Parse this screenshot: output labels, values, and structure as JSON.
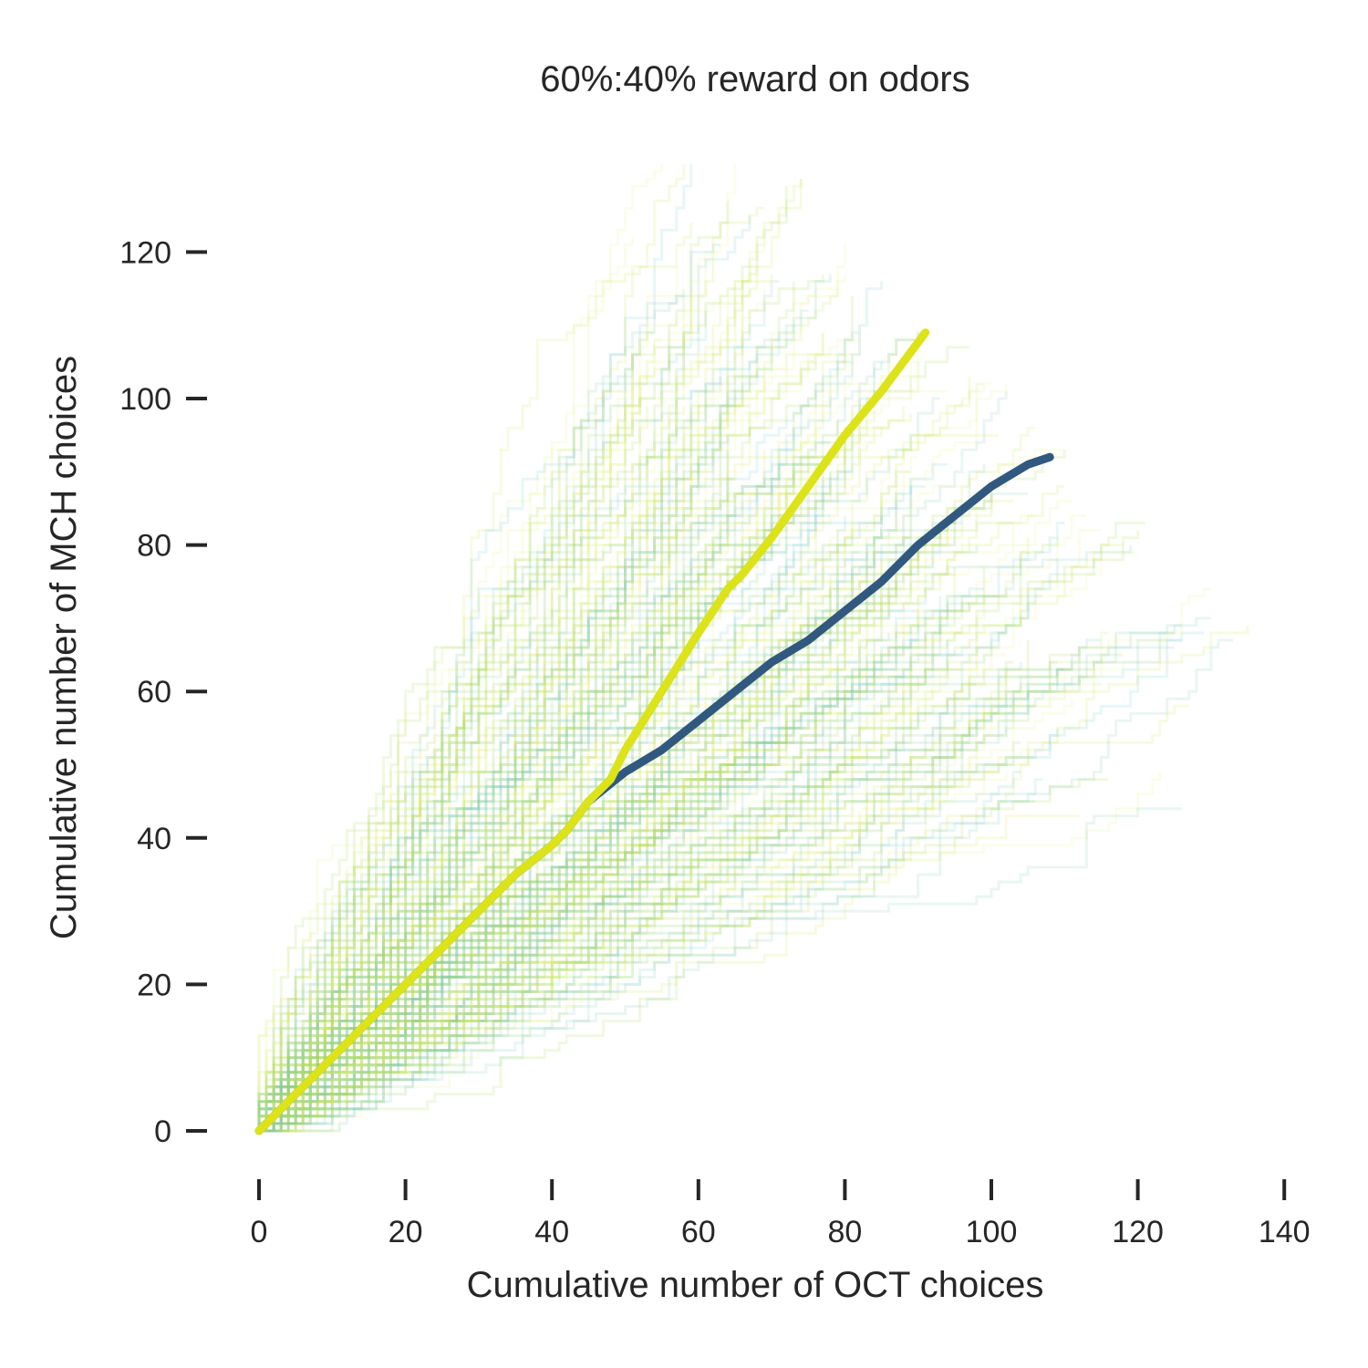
{
  "chart_data": {
    "type": "line",
    "title": "60%:40% reward on odors",
    "xlabel": "Cumulative number of OCT choices",
    "ylabel": "Cumulative number of MCH choices",
    "xlim": [
      -3,
      141
    ],
    "ylim": [
      -5,
      132
    ],
    "xticks": [
      0,
      20,
      40,
      60,
      80,
      100,
      120,
      140
    ],
    "yticks": [
      0,
      20,
      40,
      60,
      80,
      100,
      120
    ],
    "grid": false,
    "legend": "none",
    "background_traces": {
      "description_count": 220,
      "colors": [
        "#78c6c9",
        "#7cc5a8",
        "#a0d44a",
        "#c7e64d",
        "#e4f08a"
      ],
      "envelope_upper": [
        [
          0,
          3
        ],
        [
          20,
          30
        ],
        [
          40,
          55
        ],
        [
          60,
          116
        ],
        [
          68,
          132
        ],
        [
          76,
          124
        ],
        [
          92,
          110
        ],
        [
          110,
          95
        ],
        [
          126,
          75
        ]
      ],
      "envelope_lower": [
        [
          0,
          0
        ],
        [
          20,
          8
        ],
        [
          40,
          20
        ],
        [
          60,
          35
        ],
        [
          80,
          40
        ],
        [
          100,
          47
        ],
        [
          120,
          55
        ],
        [
          136,
          64
        ]
      ]
    },
    "series": [
      {
        "color": "#31587f",
        "x": [
          0,
          5,
          10,
          15,
          20,
          25,
          30,
          35,
          40,
          42,
          45,
          50,
          55,
          60,
          65,
          70,
          75,
          80,
          85,
          90,
          95,
          100,
          105,
          108
        ],
        "y": [
          0,
          5,
          10,
          15,
          20,
          25,
          30,
          35,
          39,
          41,
          45,
          49,
          52,
          56,
          60,
          64,
          67,
          71,
          75,
          80,
          84,
          88,
          91,
          92
        ]
      },
      {
        "color": "#dce319",
        "x": [
          0,
          5,
          10,
          15,
          20,
          25,
          30,
          35,
          40,
          42,
          45,
          48,
          50,
          55,
          60,
          64,
          66,
          70,
          75,
          80,
          85,
          88,
          91
        ],
        "y": [
          0,
          5,
          10,
          15,
          20,
          25,
          30,
          35,
          39,
          41,
          45,
          48,
          52,
          60,
          68,
          74,
          76,
          81,
          88,
          95,
          101,
          105,
          109
        ]
      }
    ]
  }
}
